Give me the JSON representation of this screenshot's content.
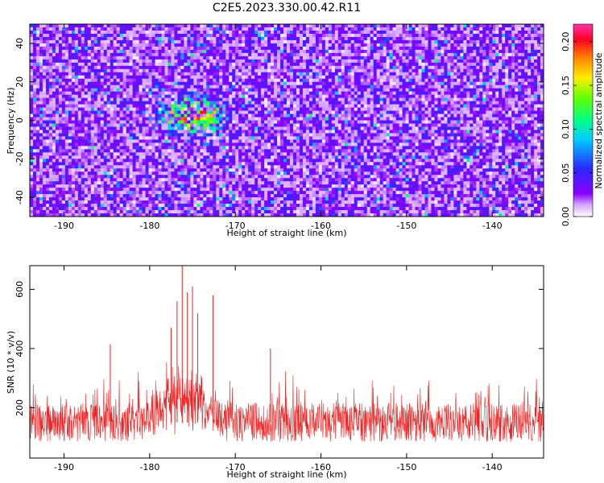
{
  "title": "C2E5.2023.330.00.42.R11",
  "chart_data": [
    {
      "type": "heatmap",
      "xlabel": "Height of straight line (km)",
      "ylabel": "Frequency (Hz)",
      "xlim": [
        -194,
        -134
      ],
      "ylim": [
        -50,
        50
      ],
      "x_ticks": [
        -190,
        -180,
        -170,
        -160,
        -150,
        -140
      ],
      "y_ticks": [
        -40,
        -20,
        0,
        20,
        40
      ],
      "grid": false,
      "colorbar": {
        "label": "Normalized spectral amplitude",
        "range": [
          0,
          0.22
        ],
        "ticks": [
          "0.00",
          "0.05",
          "0.10",
          "0.15",
          "0.20"
        ],
        "colormap": [
          "#ffffff",
          "#8a00ff",
          "#2a2aff",
          "#00ccff",
          "#00ff66",
          "#ccff00",
          "#ff8800",
          "#ff0022",
          "#ff33aa"
        ]
      },
      "background_level": 0.03,
      "hotspot": {
        "x_range": [
          -178,
          -172
        ],
        "y_range": [
          -5,
          10
        ],
        "peak": 0.21
      }
    },
    {
      "type": "line",
      "xlabel": "Height of straight line (km)",
      "ylabel": "SNR (10 * v/v)",
      "xlim": [
        -194,
        -134
      ],
      "ylim": [
        30,
        680
      ],
      "x_ticks": [
        -190,
        -180,
        -170,
        -160,
        -150,
        -140
      ],
      "y_ticks": [
        200,
        400,
        600
      ],
      "grid": false,
      "series": [
        {
          "color": "#ee2222"
        }
      ],
      "baseline_mean": 150,
      "noise_spread": [
        60,
        280
      ],
      "peaks": [
        {
          "x": -176.2,
          "y": 680
        },
        {
          "x": -175.6,
          "y": 590
        },
        {
          "x": -175.0,
          "y": 610
        },
        {
          "x": -176.8,
          "y": 560
        },
        {
          "x": -172.6,
          "y": 580
        },
        {
          "x": -174.4,
          "y": 520
        },
        {
          "x": -177.5,
          "y": 470
        },
        {
          "x": -184.6,
          "y": 415
        },
        {
          "x": -165.9,
          "y": 400
        }
      ]
    }
  ]
}
